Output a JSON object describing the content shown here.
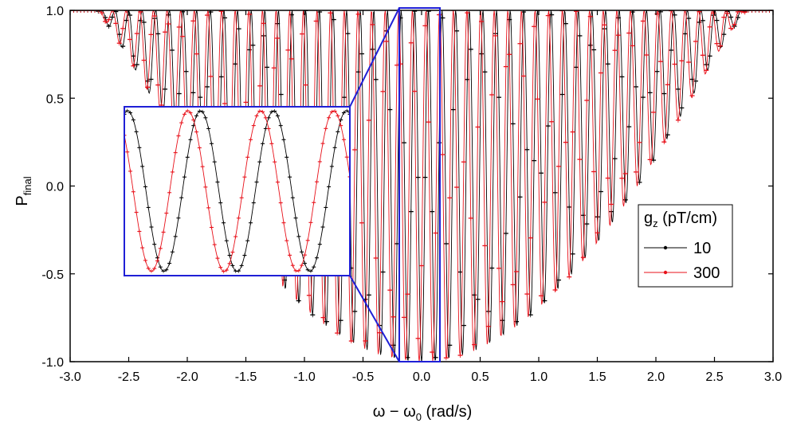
{
  "chart_data": {
    "type": "line",
    "title": "",
    "xlabel": {
      "main": "ω − ω",
      "sub": "0",
      "unit": " (rad/s)"
    },
    "ylabel": {
      "main": "P",
      "sub": "final"
    },
    "xlim": [
      -3.0,
      3.0
    ],
    "ylim": [
      -1.0,
      1.0
    ],
    "x_ticks": [
      "-3.0",
      "-2.5",
      "-2.0",
      "-1.5",
      "-1.0",
      "-0.5",
      "0.0",
      "0.5",
      "1.0",
      "1.5",
      "2.0",
      "2.5",
      "3.0"
    ],
    "y_ticks": [
      "-1.0",
      "-0.5",
      "0.0",
      "0.5",
      "1.0"
    ],
    "grid": false,
    "legend": {
      "title_main": "g",
      "title_sub": "z",
      "title_unit": " (pT/cm)",
      "placement": "right"
    },
    "series": [
      {
        "name": "10",
        "color": "#000000",
        "envelope_half_width": 2.78,
        "phase_rate": 54.0,
        "phase_offset": 0.0
      },
      {
        "name": "300",
        "color": "#e8111a",
        "envelope_half_width": 2.78,
        "phase_rate": 54.0,
        "phase_offset": 0.55
      }
    ],
    "sampling": {
      "x_start": -3.0,
      "x_end": 3.0,
      "points": 1201
    },
    "inset": {
      "description_region_x": [
        -0.18,
        0.18
      ],
      "border_color": "#1f1fd6"
    }
  }
}
